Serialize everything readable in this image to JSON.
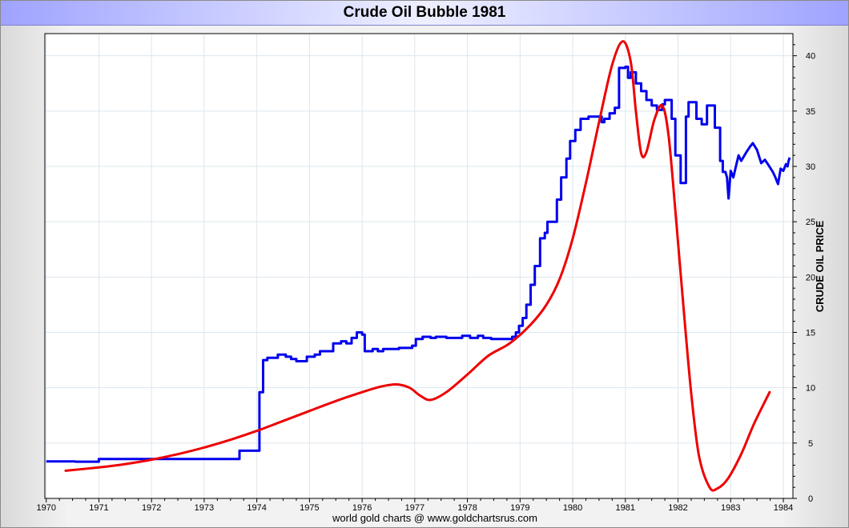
{
  "title": "Crude Oil Bubble 1981",
  "footer": "world gold charts @ www.goldchartsrus.com",
  "colors": {
    "price_line": "#0000ee",
    "bubble_curve": "#ee0000",
    "grid": "#dde6ee",
    "plot_bg": "#ffffff"
  },
  "chart_data": {
    "type": "line",
    "title": "Crude Oil Bubble 1981",
    "ylabel": "CRUDE OIL PRICE",
    "xlabel": "",
    "xlim": [
      1970,
      1984.3
    ],
    "ylim": [
      0,
      42
    ],
    "x_ticks": [
      1970,
      1971,
      1972,
      1973,
      1974,
      1975,
      1976,
      1977,
      1978,
      1979,
      1980,
      1981,
      1982,
      1983,
      1984
    ],
    "y_ticks": [
      0,
      5,
      10,
      15,
      20,
      25,
      30,
      35,
      40
    ],
    "y_axis_side": "right",
    "grid": true,
    "legend": "none",
    "series": [
      {
        "type": "step",
        "points": [
          [
            1970.0,
            3.35
          ],
          [
            1970.55,
            3.35
          ],
          [
            1970.55,
            3.32
          ],
          [
            1971.0,
            3.32
          ],
          [
            1971.0,
            3.56
          ],
          [
            1972.3,
            3.56
          ],
          [
            1972.3,
            3.56
          ],
          [
            1973.67,
            3.56
          ],
          [
            1973.67,
            4.31
          ],
          [
            1974.05,
            4.31
          ],
          [
            1974.05,
            9.6
          ],
          [
            1974.12,
            9.6
          ],
          [
            1974.12,
            12.5
          ],
          [
            1974.2,
            12.5
          ],
          [
            1974.2,
            12.7
          ],
          [
            1974.4,
            12.7
          ],
          [
            1974.4,
            13.0
          ],
          [
            1974.55,
            13.0
          ],
          [
            1974.55,
            12.8
          ],
          [
            1974.65,
            12.8
          ],
          [
            1974.65,
            12.6
          ],
          [
            1974.75,
            12.6
          ],
          [
            1974.75,
            12.4
          ],
          [
            1974.95,
            12.4
          ],
          [
            1974.95,
            12.8
          ],
          [
            1975.1,
            12.8
          ],
          [
            1975.1,
            13.0
          ],
          [
            1975.2,
            13.0
          ],
          [
            1975.2,
            13.3
          ],
          [
            1975.45,
            13.3
          ],
          [
            1975.45,
            14.0
          ],
          [
            1975.6,
            14.0
          ],
          [
            1975.6,
            14.2
          ],
          [
            1975.7,
            14.2
          ],
          [
            1975.7,
            14.0
          ],
          [
            1975.8,
            14.0
          ],
          [
            1975.8,
            14.5
          ],
          [
            1975.9,
            14.5
          ],
          [
            1975.9,
            15.0
          ],
          [
            1976.0,
            15.0
          ],
          [
            1976.0,
            14.8
          ],
          [
            1976.05,
            14.8
          ],
          [
            1976.05,
            13.3
          ],
          [
            1976.2,
            13.3
          ],
          [
            1976.2,
            13.5
          ],
          [
            1976.3,
            13.5
          ],
          [
            1976.3,
            13.3
          ],
          [
            1976.4,
            13.3
          ],
          [
            1976.4,
            13.5
          ],
          [
            1976.7,
            13.5
          ],
          [
            1976.7,
            13.6
          ],
          [
            1976.95,
            13.6
          ],
          [
            1976.95,
            13.8
          ],
          [
            1977.02,
            13.8
          ],
          [
            1977.02,
            14.4
          ],
          [
            1977.15,
            14.4
          ],
          [
            1977.15,
            14.6
          ],
          [
            1977.3,
            14.6
          ],
          [
            1977.3,
            14.5
          ],
          [
            1977.4,
            14.5
          ],
          [
            1977.4,
            14.6
          ],
          [
            1977.6,
            14.6
          ],
          [
            1977.6,
            14.5
          ],
          [
            1977.9,
            14.5
          ],
          [
            1977.9,
            14.7
          ],
          [
            1978.05,
            14.7
          ],
          [
            1978.05,
            14.5
          ],
          [
            1978.2,
            14.5
          ],
          [
            1978.2,
            14.7
          ],
          [
            1978.3,
            14.7
          ],
          [
            1978.3,
            14.5
          ],
          [
            1978.45,
            14.5
          ],
          [
            1978.45,
            14.4
          ],
          [
            1978.85,
            14.4
          ],
          [
            1978.85,
            14.6
          ],
          [
            1978.92,
            14.6
          ],
          [
            1978.92,
            15.0
          ],
          [
            1978.98,
            15.0
          ],
          [
            1978.98,
            15.6
          ],
          [
            1979.05,
            15.6
          ],
          [
            1979.05,
            16.3
          ],
          [
            1979.12,
            16.3
          ],
          [
            1979.12,
            17.5
          ],
          [
            1979.2,
            17.5
          ],
          [
            1979.2,
            19.3
          ],
          [
            1979.28,
            19.3
          ],
          [
            1979.28,
            21.0
          ],
          [
            1979.38,
            21.0
          ],
          [
            1979.38,
            23.5
          ],
          [
            1979.47,
            23.5
          ],
          [
            1979.47,
            24.0
          ],
          [
            1979.52,
            24.0
          ],
          [
            1979.52,
            25.0
          ],
          [
            1979.7,
            25.0
          ],
          [
            1979.7,
            27.0
          ],
          [
            1979.78,
            27.0
          ],
          [
            1979.78,
            29.0
          ],
          [
            1979.88,
            29.0
          ],
          [
            1979.88,
            30.7
          ],
          [
            1979.95,
            30.7
          ],
          [
            1979.95,
            32.3
          ],
          [
            1980.05,
            32.3
          ],
          [
            1980.05,
            33.3
          ],
          [
            1980.15,
            33.3
          ],
          [
            1980.15,
            34.3
          ],
          [
            1980.3,
            34.3
          ],
          [
            1980.3,
            34.5
          ],
          [
            1980.55,
            34.5
          ],
          [
            1980.55,
            34.0
          ],
          [
            1980.6,
            34.0
          ],
          [
            1980.6,
            34.3
          ],
          [
            1980.7,
            34.3
          ],
          [
            1980.7,
            34.8
          ],
          [
            1980.8,
            34.8
          ],
          [
            1980.8,
            35.3
          ],
          [
            1980.88,
            35.3
          ],
          [
            1980.88,
            38.9
          ],
          [
            1981.0,
            38.9
          ],
          [
            1981.0,
            39.0
          ],
          [
            1981.05,
            39.0
          ],
          [
            1981.05,
            38.0
          ],
          [
            1981.1,
            38.0
          ],
          [
            1981.1,
            38.5
          ],
          [
            1981.2,
            38.5
          ],
          [
            1981.2,
            37.5
          ],
          [
            1981.3,
            37.5
          ],
          [
            1981.3,
            36.8
          ],
          [
            1981.4,
            36.8
          ],
          [
            1981.4,
            36.0
          ],
          [
            1981.5,
            36.0
          ],
          [
            1981.5,
            35.5
          ],
          [
            1981.6,
            35.5
          ],
          [
            1981.6,
            35.1
          ],
          [
            1981.7,
            35.1
          ],
          [
            1981.7,
            35.6
          ],
          [
            1981.75,
            35.6
          ],
          [
            1981.75,
            36.0
          ],
          [
            1981.88,
            36.0
          ],
          [
            1981.88,
            34.3
          ],
          [
            1981.95,
            34.3
          ],
          [
            1981.95,
            31.0
          ],
          [
            1982.05,
            31.0
          ],
          [
            1982.05,
            28.5
          ],
          [
            1982.15,
            28.5
          ],
          [
            1982.15,
            34.5
          ],
          [
            1982.2,
            34.5
          ],
          [
            1982.2,
            35.8
          ],
          [
            1982.35,
            35.8
          ],
          [
            1982.35,
            34.3
          ],
          [
            1982.45,
            34.3
          ],
          [
            1982.45,
            33.8
          ],
          [
            1982.55,
            33.8
          ],
          [
            1982.55,
            35.5
          ],
          [
            1982.7,
            35.5
          ],
          [
            1982.7,
            33.5
          ],
          [
            1982.8,
            33.5
          ],
          [
            1982.8,
            30.5
          ],
          [
            1982.85,
            30.5
          ],
          [
            1982.85,
            29.5
          ],
          [
            1982.9,
            29.5
          ],
          [
            1982.93,
            29.0
          ],
          [
            1982.96,
            27.1
          ],
          [
            1983.0,
            29.6
          ],
          [
            1983.05,
            29.0
          ],
          [
            1983.1,
            30.0
          ],
          [
            1983.15,
            31.0
          ],
          [
            1983.2,
            30.5
          ],
          [
            1983.3,
            31.3
          ],
          [
            1983.37,
            31.8
          ],
          [
            1983.42,
            32.1
          ],
          [
            1983.5,
            31.5
          ],
          [
            1983.58,
            30.3
          ],
          [
            1983.65,
            30.6
          ],
          [
            1983.72,
            30.1
          ],
          [
            1983.8,
            29.5
          ],
          [
            1983.85,
            29.0
          ],
          [
            1983.9,
            28.4
          ],
          [
            1983.95,
            29.8
          ],
          [
            1984.0,
            29.6
          ],
          [
            1984.05,
            30.2
          ],
          [
            1984.08,
            30.0
          ],
          [
            1984.1,
            30.5
          ],
          [
            1984.12,
            30.8
          ]
        ]
      },
      {
        "type": "curve",
        "points": [
          [
            1970.37,
            2.5
          ],
          [
            1971.0,
            2.8
          ],
          [
            1971.5,
            3.1
          ],
          [
            1972.0,
            3.5
          ],
          [
            1972.5,
            4.0
          ],
          [
            1973.0,
            4.6
          ],
          [
            1973.5,
            5.3
          ],
          [
            1974.0,
            6.1
          ],
          [
            1974.5,
            7.0
          ],
          [
            1975.0,
            7.9
          ],
          [
            1975.5,
            8.8
          ],
          [
            1976.0,
            9.6
          ],
          [
            1976.35,
            10.1
          ],
          [
            1976.65,
            10.3
          ],
          [
            1976.9,
            10.0
          ],
          [
            1977.1,
            9.3
          ],
          [
            1977.3,
            8.9
          ],
          [
            1977.6,
            9.6
          ],
          [
            1978.0,
            11.2
          ],
          [
            1978.4,
            12.9
          ],
          [
            1978.8,
            14.0
          ],
          [
            1979.2,
            15.7
          ],
          [
            1979.5,
            17.5
          ],
          [
            1979.75,
            19.8
          ],
          [
            1980.0,
            23.5
          ],
          [
            1980.25,
            28.5
          ],
          [
            1980.5,
            34.0
          ],
          [
            1980.75,
            39.2
          ],
          [
            1980.95,
            41.3
          ],
          [
            1981.1,
            39.5
          ],
          [
            1981.2,
            35.0
          ],
          [
            1981.3,
            31.2
          ],
          [
            1981.4,
            31.3
          ],
          [
            1981.55,
            34.2
          ],
          [
            1981.7,
            35.5
          ],
          [
            1981.82,
            32.8
          ],
          [
            1981.95,
            26.0
          ],
          [
            1982.1,
            17.5
          ],
          [
            1982.25,
            9.5
          ],
          [
            1982.4,
            3.8
          ],
          [
            1982.6,
            1.0
          ],
          [
            1982.75,
            0.9
          ],
          [
            1982.95,
            1.8
          ],
          [
            1983.2,
            4.0
          ],
          [
            1983.45,
            6.8
          ],
          [
            1983.74,
            9.6
          ]
        ]
      }
    ]
  }
}
